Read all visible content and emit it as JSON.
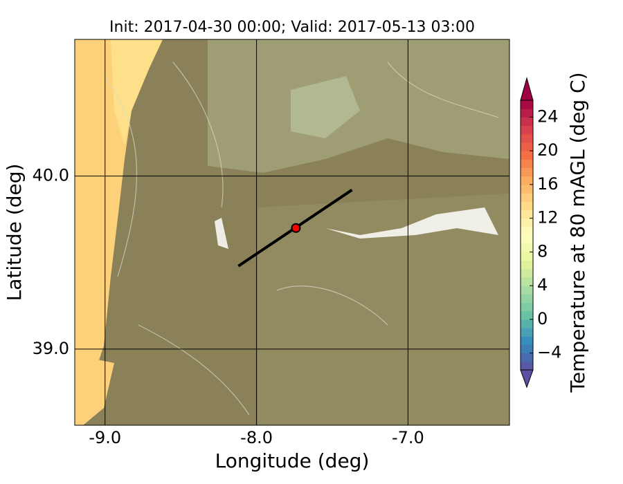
{
  "chart_data": {
    "type": "map",
    "title": "Init: 2017-04-30 00:00; Valid: 2017-05-13 03:00",
    "x_label": "Longitude (deg)",
    "y_label": "Latitude (deg)",
    "xlim": [
      -9.2,
      -6.33
    ],
    "ylim": [
      38.56,
      40.79
    ],
    "xticks": [
      {
        "value": -9,
        "label": "-9.0"
      },
      {
        "value": -8,
        "label": "-8.0"
      },
      {
        "value": -7,
        "label": "-7.0"
      }
    ],
    "yticks": [
      {
        "value": 39,
        "label": "39.0"
      },
      {
        "value": 40,
        "label": "40.0"
      }
    ],
    "grid": true,
    "transect": {
      "x": [
        -8.12,
        -7.37
      ],
      "y": [
        39.48,
        39.92
      ],
      "color": "#000000"
    },
    "point": {
      "x": -7.74,
      "y": 39.7,
      "color": "#ff0000"
    },
    "colorbar": {
      "label": "Temperature at 80 mAGL (deg C)",
      "lim": [
        -6,
        26
      ],
      "ticks": [
        {
          "value": -4,
          "label": "−4"
        },
        0,
        4,
        8,
        12,
        16,
        20,
        24
      ],
      "colors": [
        "#5e4fa2",
        "#3288bd",
        "#66c2a5",
        "#abdda4",
        "#e6f598",
        "#ffffbf",
        "#fee08b",
        "#fdae61",
        "#f46d43",
        "#d53e4f",
        "#9e0142"
      ]
    }
  }
}
